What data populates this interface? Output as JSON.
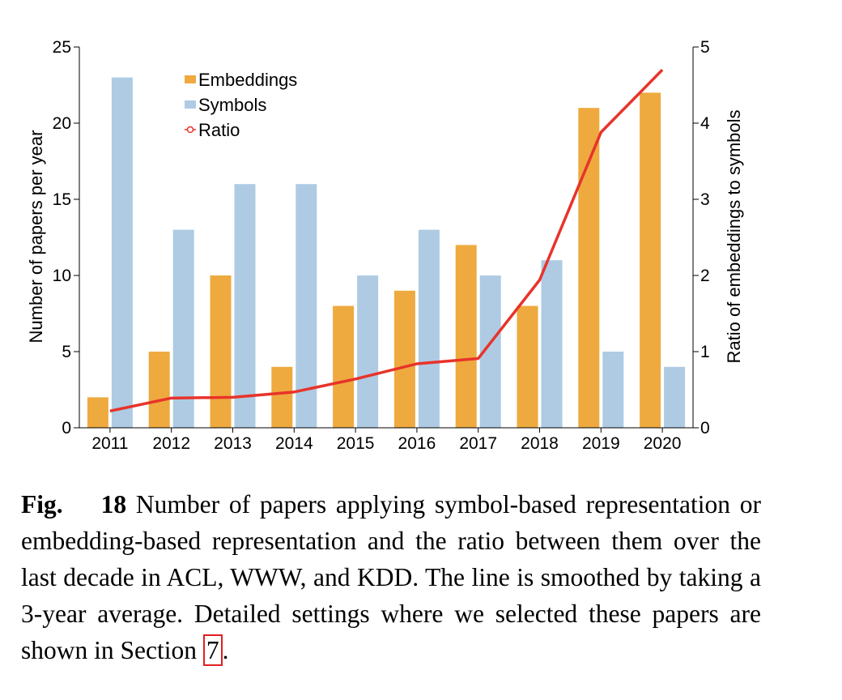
{
  "chart_data": {
    "type": "bar",
    "categories": [
      "2011",
      "2012",
      "2013",
      "2014",
      "2015",
      "2016",
      "2017",
      "2018",
      "2019",
      "2020"
    ],
    "series": [
      {
        "name": "Embeddings",
        "type": "bar",
        "axis": "left",
        "color": "#eeaa3f",
        "values": [
          2,
          5,
          10,
          4,
          8,
          9,
          12,
          8,
          21,
          22
        ]
      },
      {
        "name": "Symbols",
        "type": "bar",
        "axis": "left",
        "color": "#aecbe3",
        "values": [
          23,
          13,
          16,
          16,
          10,
          13,
          10,
          11,
          5,
          4
        ]
      },
      {
        "name": "Ratio",
        "type": "line",
        "axis": "right",
        "color": "#e8332a",
        "values": [
          0.22,
          0.39,
          0.4,
          0.47,
          0.64,
          0.84,
          0.91,
          1.94,
          3.88,
          4.7
        ]
      }
    ],
    "ylabel": "Number of papers per year",
    "y2label": "Ratio of embeddings to symbols",
    "ylim": [
      0,
      25
    ],
    "y2lim": [
      0,
      5
    ],
    "yticks": [
      "0",
      "5",
      "10",
      "15",
      "20",
      "25"
    ],
    "y2ticks": [
      "0",
      "1",
      "2",
      "3",
      "4",
      "5"
    ],
    "grid": false,
    "legend_position": "top-left"
  },
  "caption": {
    "label": "Fig.",
    "number": "18",
    "text": "Number of papers applying symbol-based representation or embedding-based representation and the ratio between them over the last decade in ACL, WWW, and KDD. The line is smoothed by taking a 3-year average. Detailed settings where we selected these papers are shown in Section",
    "ref": "7",
    "end": "."
  }
}
